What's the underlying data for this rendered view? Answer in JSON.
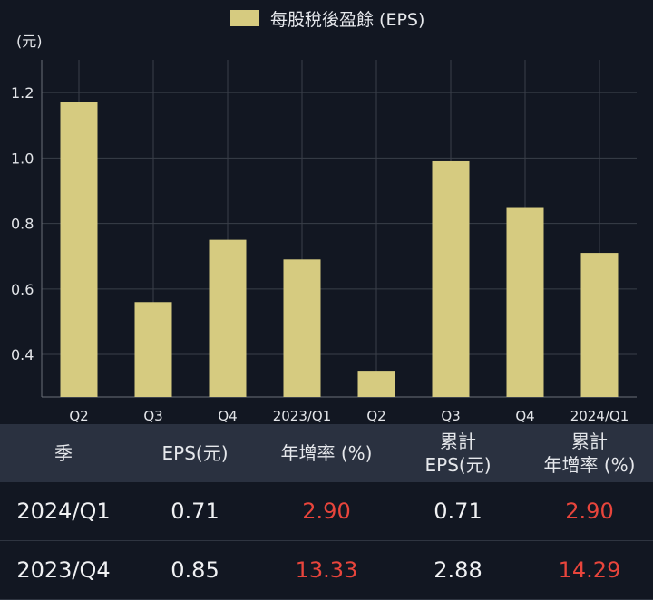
{
  "chart_data": {
    "type": "bar",
    "legend": "每股稅後盈餘 (EPS)",
    "unit_label": "(元)",
    "categories": [
      "Q2",
      "Q3",
      "Q4",
      "2023/Q1",
      "Q2",
      "Q3",
      "Q4",
      "2024/Q1"
    ],
    "series": [
      {
        "name": "每股稅後盈餘 (EPS)",
        "values": [
          1.17,
          0.56,
          0.75,
          0.69,
          0.35,
          0.99,
          0.85,
          0.71
        ]
      }
    ],
    "ylim": [
      0.27,
      1.3
    ],
    "yticks": [
      "0.4",
      "0.6",
      "0.8",
      "1.0",
      "1.2"
    ],
    "bar_color": "#d6cb80",
    "grid": true
  },
  "table": {
    "headers": [
      [
        "季"
      ],
      [
        "EPS(元)"
      ],
      [
        "年增率 (%)"
      ],
      [
        "累計",
        "EPS(元)"
      ],
      [
        "累計",
        "年增率 (%)"
      ]
    ],
    "rows": [
      {
        "season": "2024/Q1",
        "eps": "0.71",
        "yoy": "2.90",
        "cum_eps": "0.71",
        "cum_yoy": "2.90"
      },
      {
        "season": "2023/Q4",
        "eps": "0.85",
        "yoy": "13.33",
        "cum_eps": "2.88",
        "cum_yoy": "14.29"
      }
    ],
    "colors": {
      "positive": "#e8453c"
    }
  }
}
